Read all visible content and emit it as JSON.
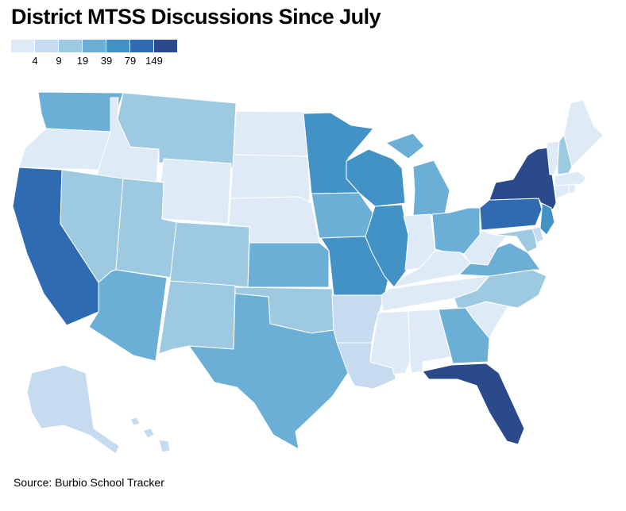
{
  "title": "District MTSS Discussions Since July",
  "legend": {
    "colors": [
      "#deebf7",
      "#c6dbef",
      "#9ecae1",
      "#6baed6",
      "#4292c6",
      "#2f6bb0",
      "#2b4a8b"
    ],
    "labels": [
      "4",
      "9",
      "19",
      "39",
      "79",
      "149"
    ]
  },
  "source": "Source: Burbio School Tracker",
  "states": {
    "WA": 3,
    "OR": 0,
    "CA": 5,
    "ID": 0,
    "NV": 2,
    "MT": 2,
    "WY": 0,
    "UT": 2,
    "AZ": 3,
    "CO": 2,
    "NM": 2,
    "ND": 0,
    "SD": 0,
    "NE": 0,
    "KS": 3,
    "OK": 2,
    "TX": 3,
    "MN": 4,
    "IA": 3,
    "MO": 4,
    "AR": 1,
    "LA": 1,
    "WI": 4,
    "IL": 4,
    "MI": 3,
    "IN": 0,
    "OH": 3,
    "KY": 0,
    "TN": 0,
    "MS": 0,
    "AL": 0,
    "GA": 3,
    "FL": 6,
    "SC": 0,
    "NC": 2,
    "VA": 3,
    "WV": 0,
    "PA": 5,
    "NY": 6,
    "NJ": 4,
    "DE": 1,
    "MD": 2,
    "VT": 0,
    "NH": 2,
    "ME": 0,
    "MA": 0,
    "CT": 0,
    "RI": 0,
    "AK": 1,
    "HI": 1
  }
}
